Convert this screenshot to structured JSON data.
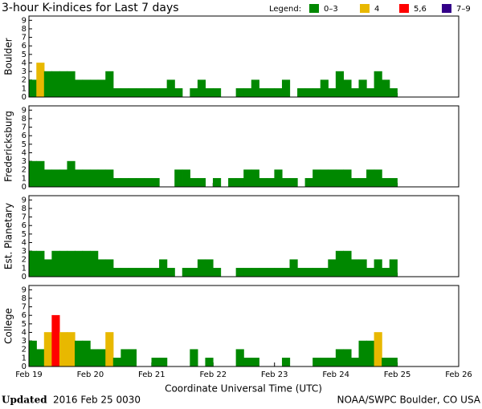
{
  "chart_data": {
    "type": "bar",
    "title": "3-hour K-indices for Last 7 days",
    "legend_title": "Legend:",
    "legend": [
      {
        "label": "0–3",
        "color": "#008800",
        "range": [
          0,
          3
        ]
      },
      {
        "label": "4",
        "color": "#e8b800",
        "range": [
          4,
          4
        ]
      },
      {
        "label": "5,6",
        "color": "#ff0000",
        "range": [
          5,
          6
        ]
      },
      {
        "label": "7–9",
        "color": "#330088",
        "range": [
          7,
          9
        ]
      }
    ],
    "xlabel": "Coordinate Universal Time (UTC)",
    "xlim": [
      0,
      56
    ],
    "xticks": [
      {
        "value": 0,
        "label": "Feb 19"
      },
      {
        "value": 8,
        "label": "Feb 20"
      },
      {
        "value": 16,
        "label": "Feb 21"
      },
      {
        "value": 24,
        "label": "Feb 22"
      },
      {
        "value": 32,
        "label": "Feb 23"
      },
      {
        "value": 40,
        "label": "Feb 24"
      },
      {
        "value": 48,
        "label": "Feb 25"
      },
      {
        "value": 56,
        "label": "Feb 26"
      }
    ],
    "ylim": [
      0,
      9.5
    ],
    "yticks": [
      0,
      1,
      2,
      3,
      4,
      5,
      6,
      7,
      8,
      9
    ],
    "series": [
      {
        "name": "Boulder",
        "values": [
          2,
          4,
          3,
          3,
          3,
          3,
          2,
          2,
          2,
          2,
          3,
          1,
          1,
          1,
          1,
          1,
          1,
          1,
          2,
          1,
          0,
          1,
          2,
          1,
          1,
          0,
          0,
          1,
          1,
          2,
          1,
          1,
          1,
          2,
          0,
          1,
          1,
          1,
          2,
          1,
          3,
          2,
          1,
          2,
          1,
          3,
          2,
          1
        ]
      },
      {
        "name": "Fredericksburg",
        "values": [
          3,
          3,
          2,
          2,
          2,
          3,
          2,
          2,
          2,
          2,
          2,
          1,
          1,
          1,
          1,
          1,
          1,
          0,
          0,
          2,
          2,
          1,
          1,
          0,
          1,
          0,
          1,
          1,
          2,
          2,
          1,
          1,
          2,
          1,
          1,
          0,
          1,
          2,
          2,
          2,
          2,
          2,
          1,
          1,
          2,
          2,
          1,
          1
        ]
      },
      {
        "name": "Est. Planetary",
        "values": [
          3,
          3,
          2,
          3,
          3,
          3,
          3,
          3,
          3,
          2,
          2,
          1,
          1,
          1,
          1,
          1,
          1,
          2,
          1,
          0,
          1,
          1,
          2,
          2,
          1,
          0,
          0,
          1,
          1,
          1,
          1,
          1,
          1,
          1,
          2,
          1,
          1,
          1,
          1,
          2,
          3,
          3,
          2,
          2,
          1,
          2,
          1,
          2
        ]
      },
      {
        "name": "College",
        "values": [
          3,
          2,
          4,
          6,
          4,
          4,
          3,
          3,
          2,
          2,
          4,
          1,
          2,
          2,
          0,
          0,
          1,
          1,
          0,
          0,
          0,
          2,
          0,
          1,
          0,
          0,
          0,
          2,
          1,
          1,
          0,
          0,
          0,
          1,
          0,
          0,
          0,
          1,
          1,
          1,
          2,
          2,
          1,
          3,
          3,
          4,
          1,
          1
        ]
      }
    ]
  },
  "footer": {
    "updated_label": "Updated",
    "updated_time": "2016 Feb 25 0030",
    "credit": "NOAA/SWPC Boulder, CO USA"
  }
}
